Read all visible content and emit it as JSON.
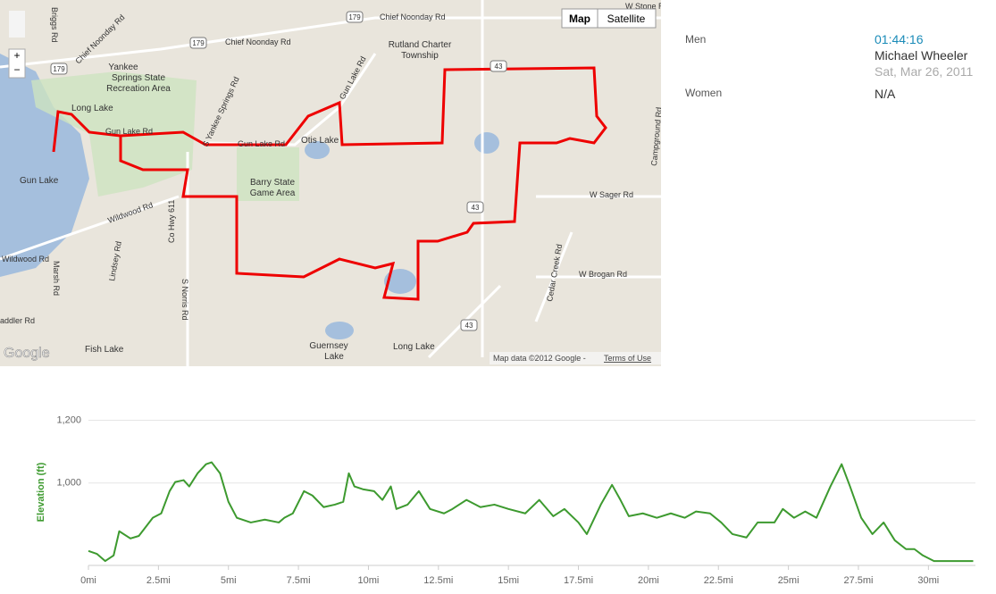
{
  "map": {
    "buttons": [
      "Map",
      "Satellite"
    ],
    "zoom": [
      "+",
      "−"
    ],
    "roads": [
      "Chief Noonday Rd",
      "Chief Noonday Rd",
      "Chief Noonday Rd",
      "Briggs Rd",
      "Gun Lake Rd",
      "Gun Lake Rd",
      "Gun Lake Rd",
      "S Yankee Springs Rd",
      "Wildwood Rd",
      "Wildwood Rd",
      "Co Hwy 611",
      "Lindsey Rd",
      "Marsh Rd",
      "S Norris Rd",
      "W Sager Rd",
      "W Brogan Rd",
      "Cedar Creek Rd",
      "Campground Rd",
      "W Stone Rd",
      "addler Rd"
    ],
    "places": [
      "Yankee",
      "Springs State",
      "Recreation Area",
      "Rutland Charter",
      "Township",
      "Long Lake",
      "Otis Lake",
      "Barry State",
      "Game Area",
      "Gun Lake",
      "Guernsey",
      "Lake",
      "Long Lake",
      "Fish Lake"
    ],
    "shields": [
      "179",
      "179",
      "179",
      "43",
      "43",
      "43"
    ],
    "logo": "Google",
    "attribution": "Map data ©2012 Google -",
    "terms": "Terms of Use"
  },
  "leaderboard": {
    "rows": [
      {
        "label": "Men",
        "time": "01:44:16",
        "name": "Michael Wheeler",
        "date": "Sat, Mar 26, 2011"
      },
      {
        "label": "Women",
        "time": "N/A"
      }
    ]
  },
  "chart_data": {
    "type": "line",
    "y_label": "Elevation (ft)",
    "x": [
      0,
      0.3,
      0.6,
      0.9,
      1.1,
      1.5,
      1.8,
      2.3,
      2.6,
      2.9,
      3.1,
      3.4,
      3.6,
      3.9,
      4.2,
      4.4,
      4.7,
      5.0,
      5.3,
      5.8,
      6.3,
      6.8,
      7.0,
      7.3,
      7.7,
      8.0,
      8.4,
      8.8,
      9.1,
      9.3,
      9.5,
      9.8,
      10.2,
      10.5,
      10.8,
      11.0,
      11.4,
      11.8,
      12.2,
      12.7,
      13.0,
      13.5,
      14.0,
      14.5,
      15.0,
      15.6,
      16.1,
      16.6,
      17.0,
      17.5,
      17.8,
      18.3,
      18.7,
      19.0,
      19.3,
      19.8,
      20.3,
      20.8,
      21.3,
      21.7,
      22.2,
      22.6,
      23.0,
      23.5,
      23.9,
      24.5,
      24.8,
      25.2,
      25.6,
      26.0,
      26.5,
      26.9,
      27.2,
      27.6,
      28.0,
      28.4,
      28.8,
      29.2,
      29.5,
      29.8,
      30.2,
      30.6,
      31.6
    ],
    "series": [
      {
        "color": "#3d9a2f",
        "values": [
          783,
          774,
          751,
          769,
          846,
          823,
          831,
          889,
          903,
          974,
          1003,
          1009,
          989,
          1031,
          1060,
          1066,
          1031,
          940,
          889,
          874,
          883,
          874,
          889,
          903,
          974,
          960,
          923,
          931,
          940,
          1031,
          989,
          980,
          974,
          946,
          989,
          917,
          931,
          974,
          917,
          903,
          917,
          946,
          923,
          931,
          917,
          903,
          946,
          894,
          917,
          874,
          837,
          931,
          994,
          946,
          894,
          903,
          889,
          903,
          889,
          909,
          903,
          874,
          837,
          826,
          874,
          874,
          917,
          889,
          909,
          889,
          989,
          1060,
          989,
          889,
          837,
          874,
          817,
          789,
          789,
          769,
          751,
          751,
          751
        ]
      }
    ],
    "xlim": [
      0,
      31.68
    ],
    "ylim": [
      737,
      1230
    ],
    "xticks": [
      {
        "value": 0,
        "label": "0mi"
      },
      {
        "value": 2.5,
        "label": "2.5mi"
      },
      {
        "value": 5,
        "label": "5mi"
      },
      {
        "value": 7.5,
        "label": "7.5mi"
      },
      {
        "value": 10,
        "label": "10mi"
      },
      {
        "value": 12.5,
        "label": "12.5mi"
      },
      {
        "value": 15,
        "label": "15mi"
      },
      {
        "value": 17.5,
        "label": "17.5mi"
      },
      {
        "value": 20,
        "label": "20mi"
      },
      {
        "value": 22.5,
        "label": "22.5mi"
      },
      {
        "value": 25,
        "label": "25mi"
      },
      {
        "value": 27.5,
        "label": "27.5mi"
      },
      {
        "value": 30,
        "label": "30mi"
      }
    ],
    "yticks": [
      {
        "value": 1000,
        "label": "1,000"
      },
      {
        "value": 1200,
        "label": "1,200"
      }
    ],
    "grid": true
  }
}
